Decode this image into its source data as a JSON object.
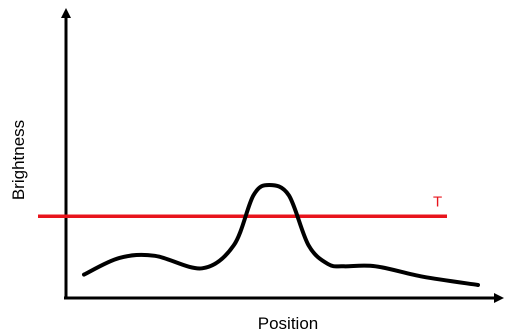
{
  "chart_data": {
    "type": "line",
    "xlabel": "Position",
    "ylabel": "Brightness",
    "grid": false,
    "xlim": [
      0,
      1
    ],
    "ylim": [
      0,
      1
    ],
    "series": [
      {
        "x": [
          0.0,
          0.09,
          0.18,
          0.3,
          0.38,
          0.43,
          0.47,
          0.52,
          0.57,
          0.62,
          0.66,
          0.74,
          0.86,
          1.0
        ],
        "y": [
          0.05,
          0.13,
          0.14,
          0.08,
          0.19,
          0.43,
          0.48,
          0.43,
          0.19,
          0.1,
          0.09,
          0.09,
          0.04,
          0.0
        ],
        "color": "#000000"
      }
    ],
    "threshold": {
      "label": "T",
      "y": 0.33,
      "color": "#e8141c"
    }
  }
}
